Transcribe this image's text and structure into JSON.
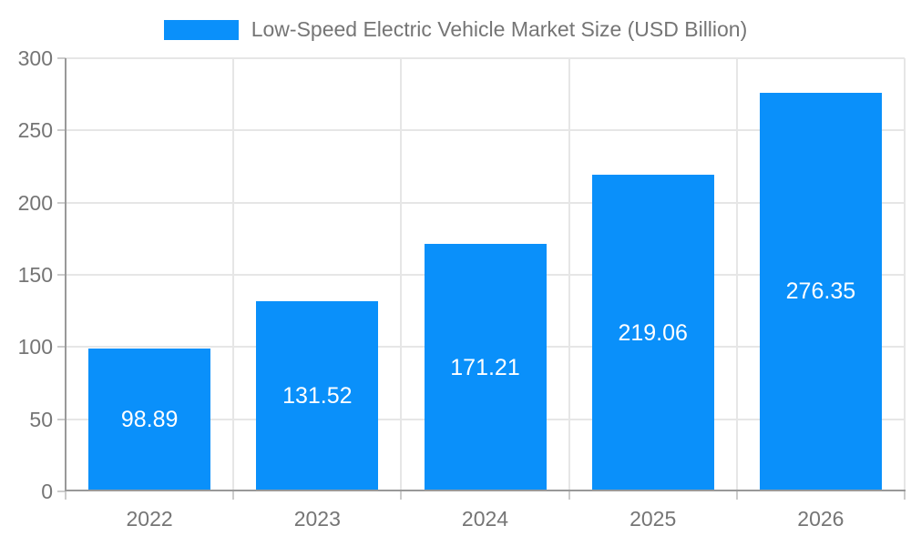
{
  "chart_data": {
    "type": "bar",
    "title": "Low-Speed Electric Vehicle Market Size (USD Billion)",
    "legend_position": "top",
    "categories": [
      "2022",
      "2023",
      "2024",
      "2025",
      "2026"
    ],
    "series": [
      {
        "name": "Low-Speed Electric Vehicle Market Size (USD Billion)",
        "values": [
          98.89,
          131.52,
          171.21,
          219.06,
          276.35
        ]
      }
    ],
    "value_labels": [
      "98.89",
      "131.52",
      "171.21",
      "219.06",
      "276.35"
    ],
    "xlabel": "",
    "ylabel": "",
    "ylim": [
      0,
      300
    ],
    "yticks": [
      0,
      50,
      100,
      150,
      200,
      250,
      300
    ],
    "grid": true,
    "colors": {
      "bar": "#0a90fa",
      "value_label_text": "#ffffff",
      "axis_text": "#757575",
      "legend_text": "#757575",
      "axis_line": "#999999",
      "tick_mark": "#cccccc",
      "gridline": "#e6e6e6",
      "background": "#ffffff"
    }
  }
}
